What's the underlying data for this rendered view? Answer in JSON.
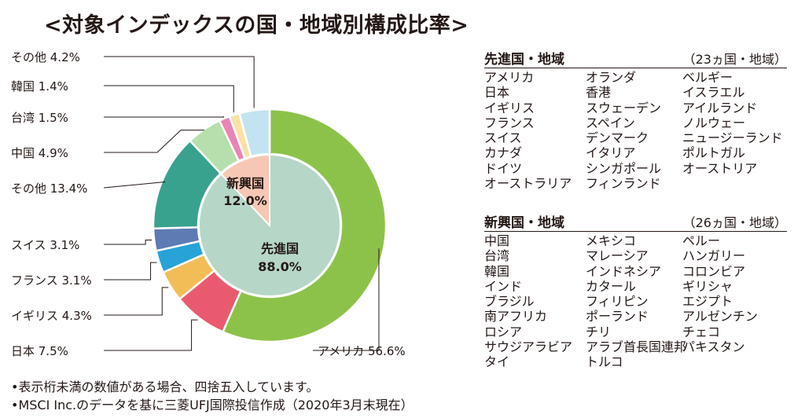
{
  "title": "<対象インデックスの国・地域別構成比率>",
  "chart_data": {
    "type": "pie",
    "outer_ring": [
      {
        "name": "アメリカ",
        "value": 56.6,
        "label": "アメリカ 56.6%",
        "color": "#8dc24a"
      },
      {
        "name": "日本",
        "value": 7.5,
        "label": "日本 7.5%",
        "color": "#e95a6e"
      },
      {
        "name": "イギリス",
        "value": 4.3,
        "label": "イギリス 4.3%",
        "color": "#f2bd57"
      },
      {
        "name": "フランス",
        "value": 3.1,
        "label": "フランス 3.1%",
        "color": "#27a3d8"
      },
      {
        "name": "スイス",
        "value": 3.1,
        "label": "スイス 3.1%",
        "color": "#5e7bb3"
      },
      {
        "name": "その他",
        "value": 13.4,
        "label": "その他 13.4%",
        "color": "#39a28e"
      },
      {
        "name": "中国",
        "value": 4.9,
        "label": "中国 4.9%",
        "color": "#b7dfad"
      },
      {
        "name": "台湾",
        "value": 1.5,
        "label": "台湾 1.5%",
        "color": "#ea84b5"
      },
      {
        "name": "韓国",
        "value": 1.4,
        "label": "韓国 1.4%",
        "color": "#f9e2a3"
      },
      {
        "name": "その他",
        "value": 4.2,
        "label": "その他 4.2%",
        "color": "#c4e3f1"
      }
    ],
    "inner_pie": [
      {
        "name": "先進国",
        "value": 88.0,
        "value_label": "88.0%",
        "color": "#b6d6c7"
      },
      {
        "name": "新興国",
        "value": 12.0,
        "value_label": "12.0%",
        "color": "#f6c7b5"
      }
    ]
  },
  "notes": [
    "•表示桁未満の数値がある場合、四捨五入しています。",
    "•MSCI Inc.のデータを基に三菱UFJ国際投信作成（2020年3月末現在）"
  ],
  "developed": {
    "title": "先進国・地域",
    "count": "（23ヵ国・地域）",
    "col1": [
      "アメリカ",
      "日本",
      "イギリス",
      "フランス",
      "スイス",
      "カナダ",
      "ドイツ",
      "オーストラリア"
    ],
    "col2": [
      "オランダ",
      "香港",
      "スウェーデン",
      "スペイン",
      "デンマーク",
      "イタリア",
      "シンガポール",
      "フィンランド"
    ],
    "col3": [
      "ベルギー",
      "イスラエル",
      "アイルランド",
      "ノルウェー",
      "ニュージーランド",
      "ポルトガル",
      "オーストリア"
    ]
  },
  "emerging": {
    "title": "新興国・地域",
    "count": "（26ヵ国・地域）",
    "col1": [
      "中国",
      "台湾",
      "韓国",
      "インド",
      "ブラジル",
      "南アフリカ",
      "ロシア",
      "サウジアラビア",
      "タイ"
    ],
    "col2": [
      "メキシコ",
      "マレーシア",
      "インドネシア",
      "カタール",
      "フィリピン",
      "ポーランド",
      "チリ",
      "アラブ首長国連邦",
      "トルコ"
    ],
    "col3": [
      "ペルー",
      "ハンガリー",
      "コロンビア",
      "ギリシャ",
      "エジプト",
      "アルゼンチン",
      "チェコ",
      "パキスタン"
    ]
  }
}
